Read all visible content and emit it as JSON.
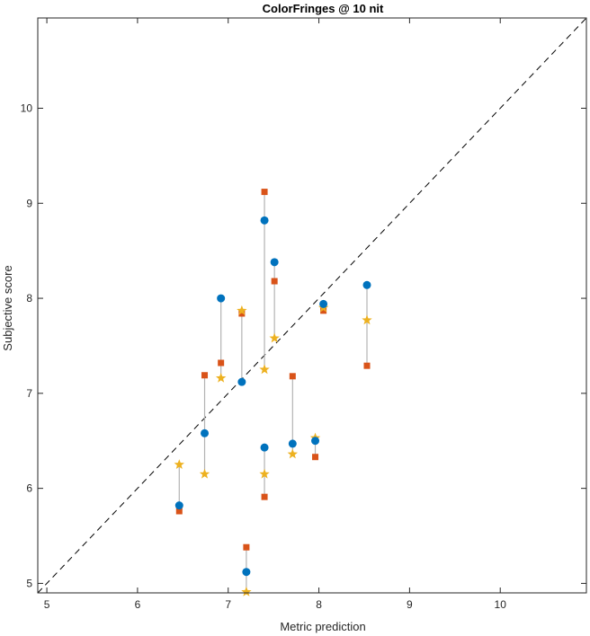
{
  "chart_data": {
    "type": "scatter",
    "title": "ColorFringes @ 10 nit",
    "xlabel": "Metric prediction",
    "ylabel": "Subjective score",
    "xlim": [
      4.9,
      10.95
    ],
    "ylim": [
      4.9,
      10.95
    ],
    "xticks": [
      "5",
      "6",
      "7",
      "8",
      "9",
      "10"
    ],
    "yticks": [
      "5",
      "6",
      "7",
      "8",
      "9",
      "10"
    ],
    "grid": false,
    "identity_line": true,
    "colors": {
      "circle": "#0072BD",
      "square": "#D95319",
      "star": "#EDB120",
      "connector": "#b3b3b3",
      "identity": "#000000"
    },
    "points": [
      {
        "x": 6.46,
        "circle": 5.82,
        "square": 5.76,
        "star": 6.25
      },
      {
        "x": 6.74,
        "circle": 6.58,
        "square": 7.19,
        "star": 6.15
      },
      {
        "x": 6.92,
        "circle": 8.0,
        "square": 7.32,
        "star": 7.16
      },
      {
        "x": 7.15,
        "circle": 7.12,
        "square": 7.84,
        "star": 7.87
      },
      {
        "x": 7.2,
        "circle": 5.12,
        "square": 5.38,
        "star": 4.91
      },
      {
        "x": 7.4,
        "circle": 8.82,
        "square": 9.12,
        "star": 7.25
      },
      {
        "x": 7.4,
        "circle": 6.43,
        "square": 5.91,
        "star": 6.15
      },
      {
        "x": 7.51,
        "circle": 8.38,
        "square": 8.18,
        "star": 7.58
      },
      {
        "x": 7.71,
        "circle": 6.47,
        "square": 7.18,
        "star": 6.36
      },
      {
        "x": 7.96,
        "circle": 6.5,
        "square": 6.33,
        "star": 6.53
      },
      {
        "x": 8.05,
        "circle": 7.94,
        "square": 7.87,
        "star": 7.9
      },
      {
        "x": 8.53,
        "circle": 8.14,
        "square": 7.29,
        "star": 7.77
      }
    ]
  }
}
